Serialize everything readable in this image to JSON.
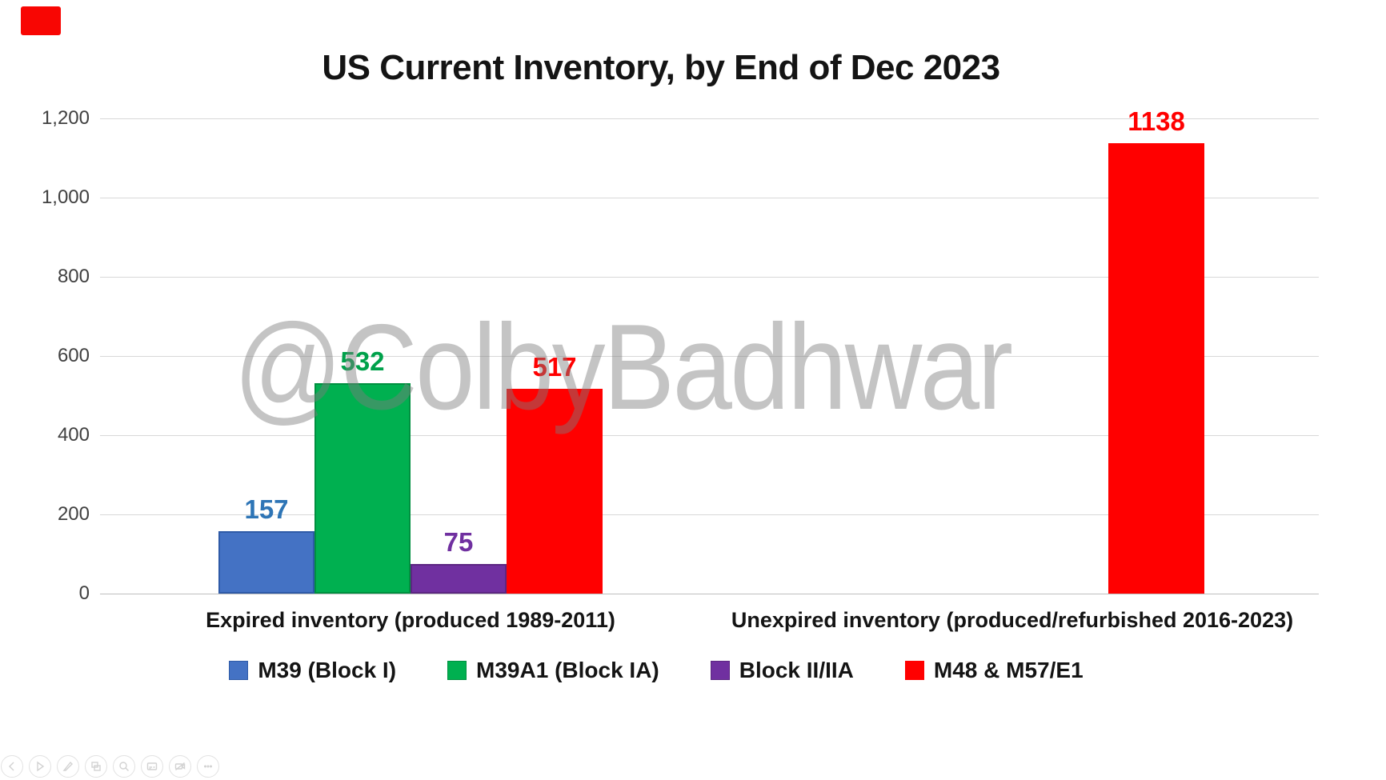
{
  "title": "US Current Inventory, by End of Dec 2023",
  "watermark": "@ColbyBadhwar",
  "recording_indicator_color": "#f80603",
  "chart_data": {
    "type": "bar",
    "title": "US Current Inventory, by End of Dec 2023",
    "categories": [
      "Expired inventory (produced 1989-2011)",
      "Unexpired inventory (produced/refurbished 2016-2023)"
    ],
    "series": [
      {
        "name": "M39 (Block I)",
        "color": "#4472C4",
        "border": "#2E5AA7",
        "label_color": "#2E75B6",
        "values": [
          157,
          null
        ]
      },
      {
        "name": "M39A1 (Block IA)",
        "color": "#00B050",
        "border": "#009040",
        "label_color": "#00A14B",
        "values": [
          532,
          null
        ]
      },
      {
        "name": "Block II/IIA",
        "color": "#7030A0",
        "border": "#5C2682",
        "label_color": "#7030A0",
        "values": [
          75,
          null
        ]
      },
      {
        "name": "M48 & M57/E1",
        "color": "#FF0000",
        "border": "",
        "label_color": "#FF0000",
        "values": [
          517,
          1138
        ]
      }
    ],
    "ylim": [
      0,
      1200
    ],
    "yticks": [
      {
        "value": 0,
        "label": "0"
      },
      {
        "value": 200,
        "label": "200"
      },
      {
        "value": 400,
        "label": "400"
      },
      {
        "value": 600,
        "label": "600"
      },
      {
        "value": 800,
        "label": "800"
      },
      {
        "value": 1000,
        "label": "1,000"
      },
      {
        "value": 1200,
        "label": "1,200"
      }
    ],
    "grid": true,
    "legend_position": "bottom",
    "data_labels": true
  },
  "toolbar": {
    "icons": [
      {
        "name": "previous-slide"
      },
      {
        "name": "next-slide"
      },
      {
        "name": "pen"
      },
      {
        "name": "see-all-slides"
      },
      {
        "name": "zoom"
      },
      {
        "name": "subtitles"
      },
      {
        "name": "camera-off"
      },
      {
        "name": "more-options"
      }
    ]
  }
}
